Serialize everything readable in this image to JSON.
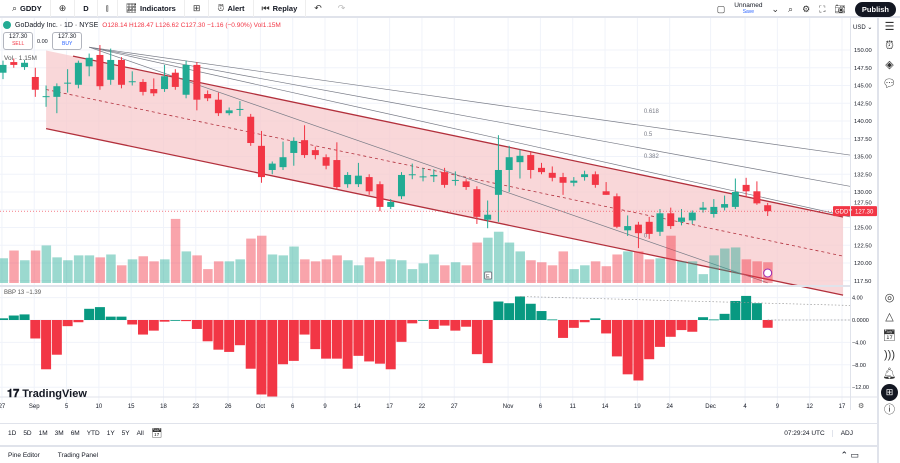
{
  "toolbar": {
    "symbol": "GDDY",
    "interval": "D",
    "indicators": "Indicators",
    "alert": "Alert",
    "replay": "Replay",
    "layout_name": "Unnamed",
    "layout_save": "Save",
    "publish": "Publish"
  },
  "legend": {
    "title": "GoDaddy Inc. · 1D · NYSE",
    "ohlc": "O128.14 H128.47 L126.62 C127.30 −1.16 (−0.90%) Vol1.15M",
    "sell_price": "127.30",
    "sell_label": "SELL",
    "spread": "0.00",
    "buy_price": "127.30",
    "buy_label": "BUY",
    "volume_label": "Vol · 1.15M"
  },
  "price_axis": {
    "currency": "USD",
    "ticks": [
      "150.00",
      "147.50",
      "145.00",
      "142.50",
      "140.00",
      "137.50",
      "135.00",
      "132.50",
      "130.00",
      "127.50",
      "125.00",
      "122.50",
      "120.00",
      "117.50"
    ],
    "last_label": "GDDY",
    "last_price": "127.30"
  },
  "bbp": {
    "label": "BBP 13  −1.39",
    "ticks": [
      "4.00",
      "0.0000",
      "−4.00",
      "−8.00",
      "−12.00"
    ]
  },
  "fib_labels": [
    "0.618",
    "0.5",
    "0.382",
    "0"
  ],
  "time_axis": [
    "27",
    "Sep",
    "5",
    "10",
    "15",
    "18",
    "23",
    "26",
    "Oct",
    "6",
    "9",
    "14",
    "17",
    "22",
    "27",
    "Nov",
    "6",
    "11",
    "14",
    "19",
    "24",
    "Dec",
    "4",
    "9",
    "12",
    "17"
  ],
  "range_buttons": [
    "1D",
    "5D",
    "1M",
    "3M",
    "6M",
    "YTD",
    "1Y",
    "5Y",
    "All"
  ],
  "clock": "07:29:24 UTC",
  "adj": "ADJ",
  "bottom_tabs": [
    "Pine Editor",
    "Trading Panel"
  ],
  "brand": "TradingView",
  "colors": {
    "up": "#22ab94",
    "down": "#f23645",
    "channel_fill": "#f7c9cc",
    "channel_line": "#b2303c"
  },
  "chart_data": {
    "type": "candlestick",
    "ylim": [
      117.5,
      152
    ],
    "candles": [
      [
        146.8,
        148.5,
        145.9,
        147.9
      ],
      [
        148.3,
        148.8,
        147.5,
        147.9
      ],
      [
        147.6,
        148.6,
        147.2,
        148.2
      ],
      [
        146.2,
        147.5,
        143.4,
        144.4
      ],
      [
        143.5,
        145,
        142,
        143.5
      ],
      [
        143.4,
        145.3,
        141.1,
        144.9
      ],
      [
        145.4,
        147.3,
        144,
        145.4
      ],
      [
        145.1,
        148.5,
        144.6,
        148.2
      ],
      [
        147.7,
        149.5,
        146.3,
        148.9
      ],
      [
        149.3,
        150.7,
        144.4,
        144.9
      ],
      [
        145.8,
        150.2,
        145.1,
        148.6
      ],
      [
        148.6,
        149,
        144.6,
        145.1
      ],
      [
        145.6,
        147,
        145,
        145.6
      ],
      [
        145.5,
        145.9,
        143.6,
        144.1
      ],
      [
        144.5,
        146,
        143.5,
        143.9
      ],
      [
        144.5,
        147.9,
        144.1,
        146.3
      ],
      [
        146.8,
        147.3,
        144.4,
        144.8
      ],
      [
        143.7,
        148.5,
        143.2,
        147.9
      ],
      [
        147.9,
        148.3,
        141.5,
        143
      ],
      [
        143.8,
        144.3,
        142.8,
        143.2
      ],
      [
        143,
        144,
        140.7,
        141.1
      ],
      [
        141.1,
        141.9,
        140.8,
        141.5
      ],
      [
        141.7,
        142.8,
        140.7,
        141.7
      ],
      [
        140.6,
        141,
        136.5,
        136.9
      ],
      [
        136.5,
        138.6,
        131.3,
        132.1
      ],
      [
        133.1,
        134.3,
        132.5,
        134
      ],
      [
        133.5,
        137.1,
        133.1,
        134.9
      ],
      [
        135.5,
        137.7,
        133.7,
        137.2
      ],
      [
        137.3,
        139.4,
        134.8,
        135.2
      ],
      [
        135.9,
        136.4,
        134.6,
        135.2
      ],
      [
        134.9,
        135.3,
        133.2,
        133.7
      ],
      [
        134.5,
        137,
        130.3,
        130.7
      ],
      [
        131.1,
        132.8,
        130.6,
        132.4
      ],
      [
        131.1,
        134.1,
        130.7,
        132.3
      ],
      [
        132.1,
        132.5,
        129.6,
        130.1
      ],
      [
        131.1,
        131.5,
        127.3,
        127.9
      ],
      [
        127.9,
        129,
        127.6,
        128.6
      ],
      [
        129.4,
        132.8,
        129,
        132.4
      ],
      [
        132.5,
        134,
        131.8,
        132.5
      ],
      [
        132.2,
        133.4,
        131.5,
        132.2
      ],
      [
        132.2,
        133.2,
        131.4,
        132.4
      ],
      [
        132.8,
        133.4,
        130.6,
        131
      ],
      [
        131.7,
        132.9,
        130.9,
        131.7
      ],
      [
        131.5,
        131.8,
        130.3,
        130.7
      ],
      [
        130.4,
        130.8,
        125.5,
        126.5
      ],
      [
        126.1,
        128.8,
        124.9,
        126.8
      ],
      [
        129.6,
        138,
        125.8,
        133.1
      ],
      [
        133.1,
        136.5,
        130,
        134.9
      ],
      [
        134.2,
        136,
        131.9,
        135.1
      ],
      [
        135.2,
        135.6,
        131.9,
        133.1
      ],
      [
        133.4,
        134.1,
        132.5,
        132.8
      ],
      [
        132.7,
        133.6,
        131.5,
        132
      ],
      [
        132.1,
        132.7,
        129.6,
        131.3
      ],
      [
        131.3,
        132.1,
        130.8,
        131.6
      ],
      [
        132.1,
        133,
        131.6,
        132.5
      ],
      [
        132.5,
        132.9,
        130.6,
        131
      ],
      [
        130.1,
        131.4,
        129.6,
        129.6
      ],
      [
        129.4,
        129.8,
        124.9,
        125.1
      ],
      [
        124.6,
        126.7,
        123.8,
        125.2
      ],
      [
        125.4,
        125.8,
        122.1,
        124.2
      ],
      [
        125.8,
        126.5,
        123.4,
        124.1
      ],
      [
        124.4,
        127.6,
        123.8,
        127
      ],
      [
        127,
        127.8,
        124.8,
        125.2
      ],
      [
        125.8,
        127.6,
        125.3,
        126.4
      ],
      [
        126,
        127.4,
        125.5,
        127.1
      ],
      [
        127.5,
        128.6,
        127.1,
        127.8
      ],
      [
        126.9,
        129,
        126.4,
        127.9
      ],
      [
        127.8,
        129.5,
        127.4,
        128.3
      ],
      [
        127.9,
        131.9,
        127.6,
        130
      ],
      [
        131,
        132,
        129.3,
        130.1
      ],
      [
        130.1,
        131.5,
        128.2,
        128.4
      ],
      [
        128.14,
        128.47,
        126.62,
        127.3
      ]
    ],
    "volume_millions": [
      1.37,
      1.8,
      1.26,
      1.8,
      2.08,
      1.42,
      1.26,
      1.53,
      1.53,
      1.42,
      1.58,
      0.98,
      1.31,
      1.48,
      1.2,
      1.31,
      3.55,
      1.75,
      1.53,
      0.77,
      1.2,
      1.2,
      1.31,
      2.46,
      2.62,
      1.58,
      1.53,
      2.02,
      1.31,
      1.2,
      1.31,
      1.53,
      1.26,
      0.98,
      1.42,
      1.2,
      1.31,
      1.26,
      0.77,
      1.09,
      1.58,
      0.98,
      1.15,
      0.98,
      2.24,
      2.51,
      2.84,
      2.24,
      1.75,
      1.26,
      1.15,
      0.98,
      1.75,
      0.77,
      0.98,
      1.2,
      0.93,
      1.58,
      1.75,
      1.75,
      1.31,
      1.37,
      2.62,
      1.2,
      1.2,
      0.49,
      1.53,
      1.91,
      1.97,
      1.31,
      1.2,
      1.15
    ],
    "bbp_values": [
      0.3,
      0.8,
      1.0,
      -3.3,
      -8.8,
      -6.2,
      -1.1,
      -0.4,
      2.0,
      2.3,
      0.6,
      0.6,
      -0.8,
      -2.6,
      -1.9,
      -0.3,
      0,
      -0.2,
      -1.6,
      -3.8,
      -5.3,
      -5.7,
      -4.5,
      -8.7,
      -13.3,
      -13.7,
      -7.9,
      -7.3,
      -2.6,
      -5.2,
      -6.9,
      -6.9,
      -8.7,
      -6.4,
      -7.4,
      -7.8,
      -8.8,
      -3.9,
      -0.6,
      0,
      -1.6,
      -1.0,
      -1.9,
      -1.2,
      -6.1,
      -7.7,
      3.3,
      3.0,
      4.2,
      2.9,
      1.6,
      0.1,
      -3.2,
      -1.4,
      -0.4,
      0.3,
      -2.4,
      -6.5,
      -9.7,
      -10.8,
      -7.0,
      -4.8,
      -3.0,
      -1.8,
      -2.1,
      0.5,
      0.1,
      1.1,
      3.4,
      4.3,
      3.0,
      -1.39
    ]
  }
}
